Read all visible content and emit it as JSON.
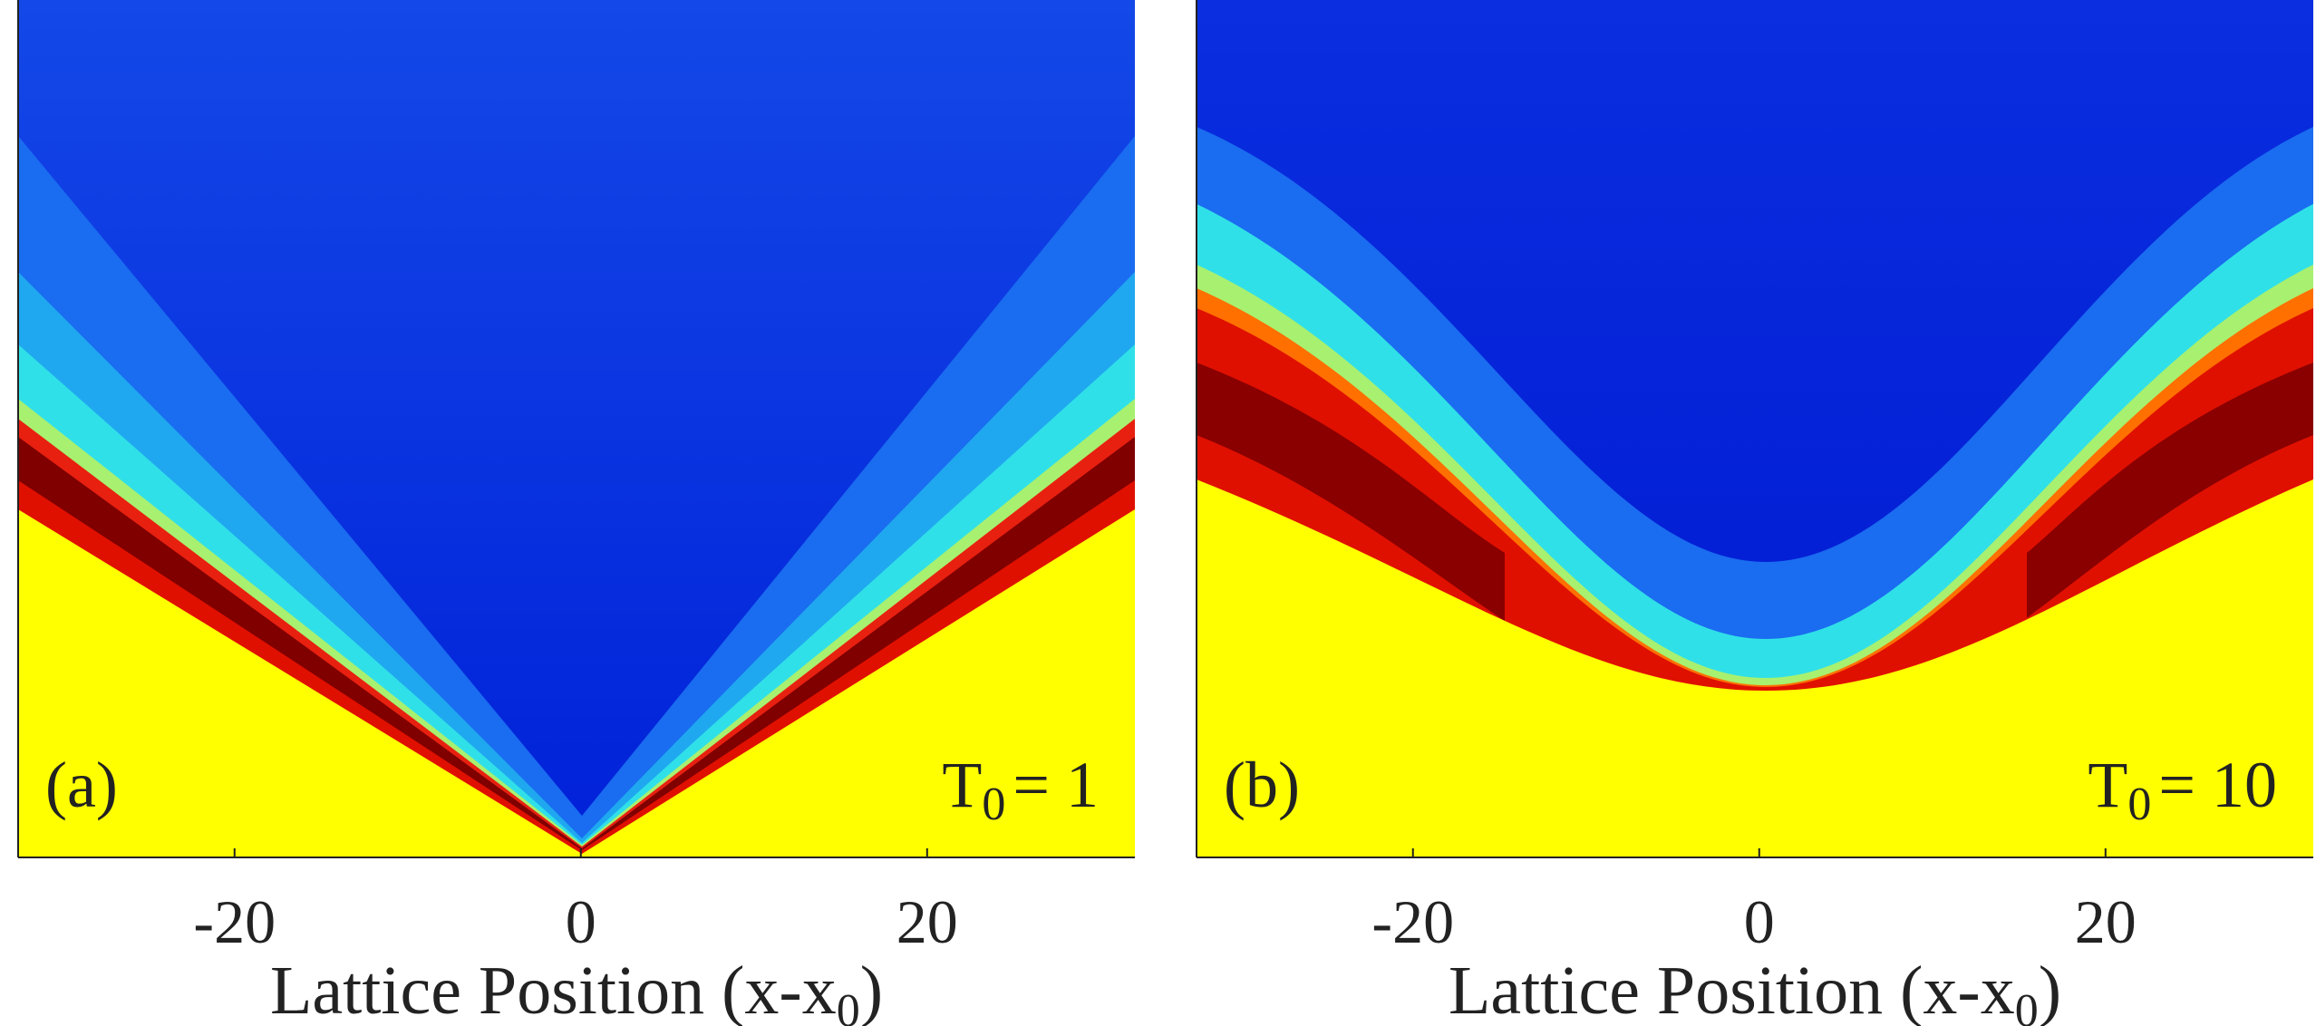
{
  "chart_data": [
    {
      "type": "heatmap",
      "panel_label": "(a)",
      "annotation": {
        "symbol": "T",
        "subscript": "0",
        "text": "= 1"
      },
      "xlabel": {
        "text": "Lattice Position (x-x",
        "subscript": "0",
        "suffix": ")"
      },
      "xlim": [
        -32.5,
        32
      ],
      "xticks": [
        -20,
        0,
        20
      ]
    },
    {
      "type": "heatmap",
      "panel_label": "(b)",
      "annotation": {
        "symbol": "T",
        "subscript": "0",
        "text": "= 10"
      },
      "xlabel": {
        "text": "Lattice Position (x-x",
        "subscript": "0",
        "suffix": ")"
      },
      "xlim": [
        -32.5,
        32
      ],
      "xticks": [
        -20,
        0,
        20
      ]
    }
  ]
}
